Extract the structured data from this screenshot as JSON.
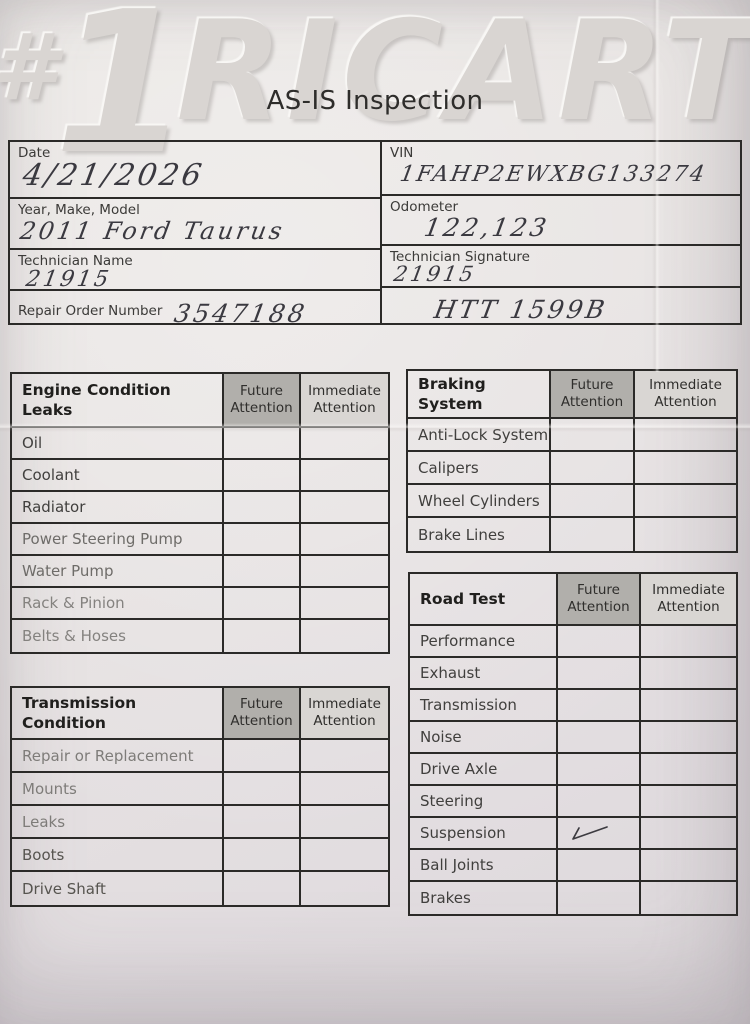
{
  "colors": {
    "paper": "#e7e3e2",
    "ink": "#2e2d2b",
    "handwriting": "#3a3940",
    "border": "#2b2a28",
    "future-bg": "#b1afab",
    "immediate-bg": "#d9d6d3",
    "watermark": "#d9d5d2"
  },
  "header": {
    "watermark_hash": "#",
    "watermark_numeral": "1",
    "watermark_name": "RICART",
    "title": "AS-IS Inspection"
  },
  "fields": {
    "left": [
      {
        "label": "Date",
        "value": "4/21/2026"
      },
      {
        "label": "Year, Make, Model",
        "value": "2011 Ford Taurus"
      },
      {
        "label": "Technician Name",
        "value": "21915"
      },
      {
        "label": "Repair Order Number",
        "value": "3547188",
        "inline": true
      }
    ],
    "right": [
      {
        "label": "VIN",
        "value": "1FAHP2EWXBG133274"
      },
      {
        "label": "Odometer",
        "value": "122,123"
      },
      {
        "label": "Technician Signature",
        "value": "21915"
      },
      {
        "label": "",
        "value": "HTT 1599B"
      }
    ]
  },
  "columns": {
    "future": "Future Attention",
    "immediate": "Immediate Attention"
  },
  "tables": [
    {
      "id": "engine",
      "title": "Engine Condition\nLeaks",
      "rows": [
        {
          "label": "Oil"
        },
        {
          "label": "Coolant"
        },
        {
          "label": "Radiator"
        },
        {
          "label": "Power Steering Pump"
        },
        {
          "label": "Water Pump"
        },
        {
          "label": "Rack & Pinion"
        },
        {
          "label": "Belts & Hoses"
        }
      ]
    },
    {
      "id": "braking",
      "title": "Braking System",
      "rows": [
        {
          "label": "Anti-Lock System"
        },
        {
          "label": "Calipers"
        },
        {
          "label": "Wheel Cylinders"
        },
        {
          "label": "Brake Lines"
        }
      ]
    },
    {
      "id": "transmission",
      "title": "Transmission Condition",
      "rows": [
        {
          "label": "Repair or Replacement"
        },
        {
          "label": "Mounts"
        },
        {
          "label": "Leaks"
        },
        {
          "label": "Boots"
        },
        {
          "label": "Drive Shaft"
        }
      ]
    },
    {
      "id": "roadtest",
      "title": "Road Test",
      "rows": [
        {
          "label": "Performance"
        },
        {
          "label": "Exhaust"
        },
        {
          "label": "Transmission"
        },
        {
          "label": "Noise"
        },
        {
          "label": "Drive Axle"
        },
        {
          "label": "Steering"
        },
        {
          "label": "Suspension",
          "future_check": true
        },
        {
          "label": "Ball Joints"
        },
        {
          "label": "Brakes"
        }
      ]
    }
  ]
}
